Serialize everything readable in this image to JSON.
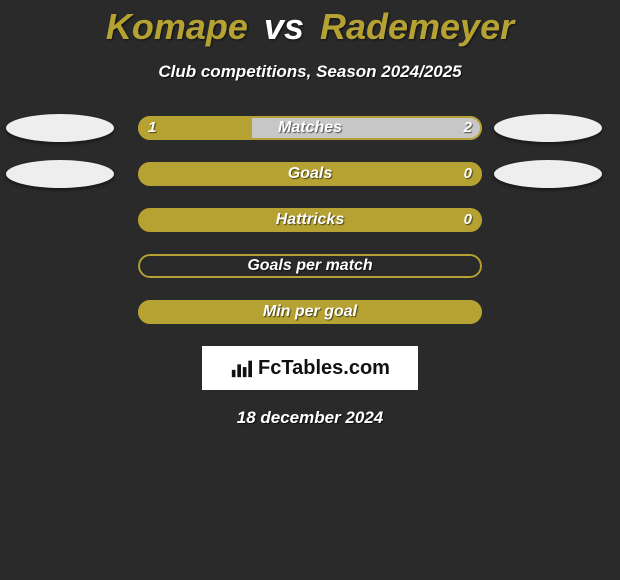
{
  "background_color": "#2a2a2a",
  "header": {
    "player1": "Komape",
    "vs": "vs",
    "player2": "Rademeyer",
    "player1_color": "#b5a232",
    "vs_color": "#ffffff",
    "player2_color": "#b5a232",
    "subtitle": "Club competitions, Season 2024/2025"
  },
  "flag_bg": "#eeeeee",
  "bar_colors": {
    "player1": "#b5a232",
    "player2": "#c7c7c7",
    "border": "#b5a232"
  },
  "rows": [
    {
      "metric": "Matches",
      "left": "1",
      "right": "2",
      "left_pct": 33,
      "right_pct": 67,
      "show_flags": true
    },
    {
      "metric": "Goals",
      "left": "",
      "right": "0",
      "left_pct": 100,
      "right_pct": 0,
      "show_flags": true
    },
    {
      "metric": "Hattricks",
      "left": "",
      "right": "0",
      "left_pct": 100,
      "right_pct": 0,
      "show_flags": false
    },
    {
      "metric": "Goals per match",
      "left": "",
      "right": "",
      "left_pct": 0,
      "right_pct": 0,
      "show_flags": false
    },
    {
      "metric": "Min per goal",
      "left": "",
      "right": "",
      "left_pct": 100,
      "right_pct": 0,
      "show_flags": false
    }
  ],
  "logo": {
    "text": "FcTables.com"
  },
  "date": "18 december 2024"
}
